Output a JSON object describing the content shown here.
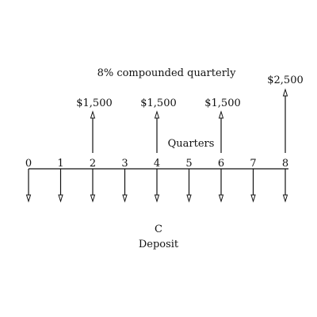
{
  "diagram": {
    "title": "8% compounded quarterly",
    "period_label": "Quarters",
    "periods": [
      "0",
      "1",
      "2",
      "3",
      "4",
      "5",
      "6",
      "7",
      "8"
    ],
    "inflows": [
      {
        "period": 2,
        "amount": "$1,500"
      },
      {
        "period": 4,
        "amount": "$1,500"
      },
      {
        "period": 6,
        "amount": "$1,500"
      },
      {
        "period": 8,
        "amount": "$2,500"
      }
    ],
    "outflows": [
      0,
      1,
      2,
      3,
      4,
      5,
      6,
      7,
      8
    ],
    "deposit_symbol": "C",
    "deposit_label": "Deposit"
  }
}
